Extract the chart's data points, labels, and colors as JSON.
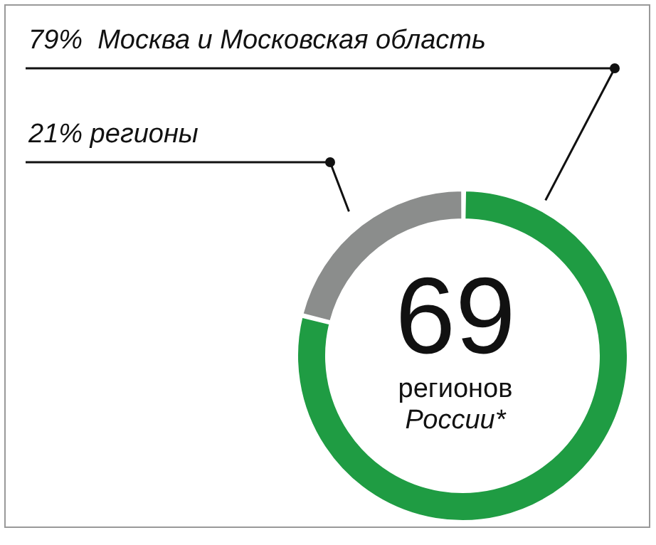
{
  "chart_data": {
    "type": "donut",
    "categories": [
      "Москва и Московская область",
      "регионы"
    ],
    "values": [
      79,
      21
    ],
    "value_labels": [
      "79%",
      "21%"
    ],
    "colors": [
      "#1f9c43",
      "#8b8d8c"
    ],
    "annotations": [
      "69",
      "регионов",
      "России*"
    ]
  }
}
